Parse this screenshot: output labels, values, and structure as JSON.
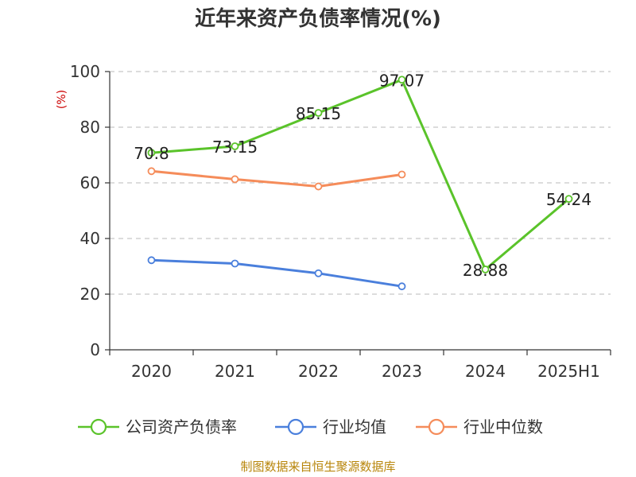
{
  "title": "近年来资产负债率情况(%)",
  "source": "制图数据来自恒生聚源数据库",
  "chart_data": {
    "type": "line",
    "title": "近年来资产负债率情况(%)",
    "ylabel": "(%)",
    "xlabel": "",
    "ylim": [
      0,
      100
    ],
    "yticks": [
      0,
      20,
      40,
      60,
      80,
      100
    ],
    "categories": [
      "2020",
      "2021",
      "2022",
      "2023",
      "2024",
      "2025H1"
    ],
    "grid": true,
    "legend_position": "bottom",
    "series": [
      {
        "name": "公司资产负债率",
        "color": "#5ac32a",
        "values": [
          70.8,
          73.15,
          85.15,
          97.07,
          28.88,
          54.24
        ],
        "labels": [
          "70.8",
          "73.15",
          "85.15",
          "97.07",
          "28.88",
          "54.24"
        ]
      },
      {
        "name": "行业均值",
        "color": "#4a7fdc",
        "values": [
          32.2,
          31.0,
          27.5,
          22.8,
          null,
          null
        ]
      },
      {
        "name": "行业中位数",
        "color": "#f58c5a",
        "values": [
          64.2,
          61.3,
          58.7,
          63.0,
          null,
          null
        ]
      }
    ]
  }
}
